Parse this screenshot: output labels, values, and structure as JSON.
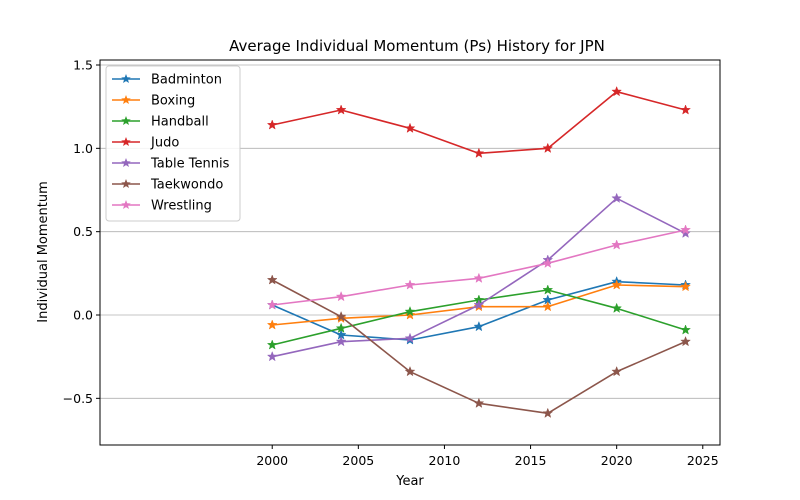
{
  "chart_data": {
    "type": "line",
    "title": "Average Individual Momentum (Ps) History for JPN",
    "xlabel": "Year",
    "ylabel": "Individual Momentum",
    "xlim": [
      1990,
      2026
    ],
    "ylim": [
      -0.78,
      1.53
    ],
    "x_ticks": [
      2000,
      2005,
      2010,
      2015,
      2020,
      2025
    ],
    "x_tick_labels": [
      "2000",
      "2005",
      "2010",
      "2015",
      "2020",
      "2025"
    ],
    "y_ticks": [
      -0.5,
      0.0,
      0.5,
      1.0,
      1.5
    ],
    "y_tick_labels": [
      "−0.5",
      "0.0",
      "0.5",
      "1.0",
      "1.5"
    ],
    "grid": "horizontal",
    "legend_position": "top-left",
    "marker": "star",
    "x": [
      2000,
      2004,
      2008,
      2012,
      2016,
      2020,
      2024
    ],
    "series": [
      {
        "name": "Badminton",
        "color": "#1f77b4",
        "values": [
          0.06,
          -0.12,
          -0.15,
          -0.07,
          0.09,
          0.2,
          0.18
        ]
      },
      {
        "name": "Boxing",
        "color": "#ff7f0e",
        "values": [
          -0.06,
          -0.02,
          0.0,
          0.05,
          0.05,
          0.18,
          0.17
        ]
      },
      {
        "name": "Handball",
        "color": "#2ca02c",
        "values": [
          -0.18,
          -0.08,
          0.02,
          0.09,
          0.15,
          0.04,
          -0.09
        ]
      },
      {
        "name": "Judo",
        "color": "#d62728",
        "values": [
          1.14,
          1.23,
          1.12,
          0.97,
          1.0,
          1.34,
          1.23
        ]
      },
      {
        "name": "Table Tennis",
        "color": "#9467bd",
        "values": [
          -0.25,
          -0.16,
          -0.14,
          0.06,
          0.33,
          0.7,
          0.49
        ]
      },
      {
        "name": "Taekwondo",
        "color": "#8c564b",
        "values": [
          0.21,
          -0.01,
          -0.34,
          -0.53,
          -0.59,
          -0.34,
          -0.16
        ]
      },
      {
        "name": "Wrestling",
        "color": "#e377c2",
        "values": [
          0.06,
          0.11,
          0.18,
          0.22,
          0.31,
          0.42,
          0.51
        ]
      }
    ]
  }
}
